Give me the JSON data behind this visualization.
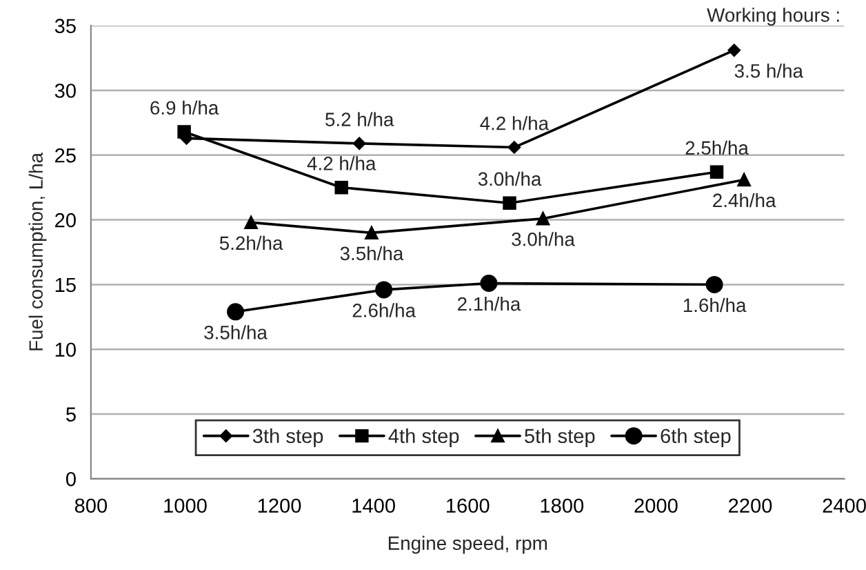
{
  "chart_data": {
    "type": "line",
    "xlabel": "Engine speed, rpm",
    "ylabel": "Fuel consumption, L/ha",
    "xlim": [
      800,
      2400
    ],
    "xticks": [
      800,
      1000,
      1200,
      1400,
      1600,
      1800,
      2000,
      2200,
      2400
    ],
    "ylim": [
      0,
      35
    ],
    "yticks": [
      0,
      5,
      10,
      15,
      20,
      25,
      30,
      35
    ],
    "grid": "y",
    "legend": "bottom",
    "series": [
      {
        "name": "3th step",
        "color": "#000000",
        "marker": "diamond",
        "x": [
          1003,
          1370,
          1699,
          2166
        ],
        "values": [
          26.3,
          25.9,
          25.6,
          33.1
        ]
      },
      {
        "name": "4th step",
        "color": "#000000",
        "marker": "square",
        "x": [
          998,
          1332,
          1689,
          2129
        ],
        "values": [
          26.8,
          22.5,
          21.3,
          23.7
        ]
      },
      {
        "name": "5th step",
        "color": "#000000",
        "marker": "triangle",
        "x": [
          1140,
          1396,
          1760,
          2187
        ],
        "values": [
          19.8,
          19.0,
          20.1,
          23.1
        ]
      },
      {
        "name": "6th step",
        "color": "#000000",
        "marker": "circle",
        "x": [
          1107,
          1422,
          1645,
          2124
        ],
        "values": [
          12.9,
          14.6,
          15.1,
          15.0
        ]
      }
    ],
    "annotations": [
      "Working hours :",
      {
        "text": "6.9 h/ha",
        "x": 998,
        "y": 26.8
      },
      {
        "text": "5.2 h/ha",
        "x": 1370,
        "y": 25.9
      },
      {
        "text": "4.2 h/ha",
        "x": 1699,
        "y": 25.6
      },
      {
        "text": "3.5 h/ha",
        "x": 2166,
        "y": 33.1
      },
      {
        "text": "4.2 h/ha",
        "x": 1332,
        "y": 22.5
      },
      {
        "text": "3.0h/ha",
        "x": 1689,
        "y": 21.3
      },
      {
        "text": "2.5h/ha",
        "x": 2129,
        "y": 23.7
      },
      {
        "text": "5.2h/ha",
        "x": 1140,
        "y": 19.8
      },
      {
        "text": "3.5h/ha",
        "x": 1396,
        "y": 19.0
      },
      {
        "text": "3.0h/ha",
        "x": 1760,
        "y": 20.1
      },
      {
        "text": "2.4h/ha",
        "x": 2187,
        "y": 23.1
      },
      {
        "text": "3.5h/ha",
        "x": 1107,
        "y": 12.9
      },
      {
        "text": "2.6h/ha",
        "x": 1422,
        "y": 14.6
      },
      {
        "text": "2.1h/ha",
        "x": 1645,
        "y": 15.1
      },
      {
        "text": "1.6h/ha",
        "x": 2124,
        "y": 15.0
      }
    ]
  }
}
